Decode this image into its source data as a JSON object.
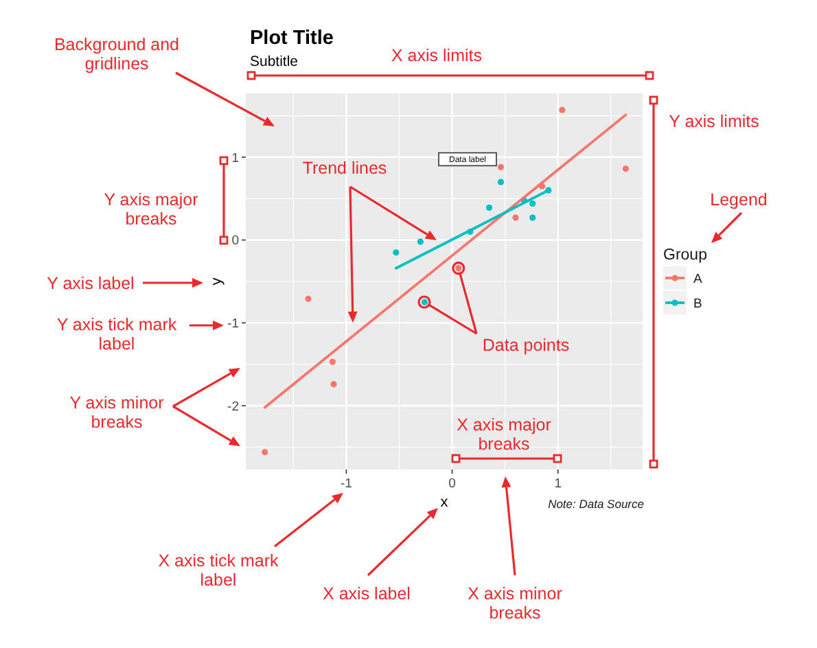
{
  "chart_data": {
    "type": "scatter",
    "title": "Plot Title",
    "subtitle": "Subtitle",
    "xlabel": "x",
    "ylabel": "y",
    "legend_title": "Group",
    "xlim": [
      -1.95,
      1.8
    ],
    "ylim": [
      -2.77,
      1.77
    ],
    "xticks": [
      -1,
      0,
      1
    ],
    "yticks": [
      -2,
      -1,
      0,
      1
    ],
    "grid": true,
    "legend": "right",
    "marker": "circle",
    "series": [
      {
        "name": "A",
        "color": "#f8766d",
        "x": [
          1.04,
          0.46,
          1.64,
          0.85,
          0.6,
          -1.36,
          -1.13,
          -1.12,
          -1.77,
          0.06
        ],
        "values": [
          1.57,
          0.88,
          0.86,
          0.65,
          0.27,
          -0.71,
          -1.47,
          -1.74,
          -2.56,
          -0.34
        ]
      },
      {
        "name": "B",
        "color": "#00bfc4",
        "x": [
          -0.53,
          -0.3,
          0.17,
          0.35,
          0.46,
          0.68,
          0.76,
          0.76,
          0.91,
          -0.26
        ],
        "values": [
          -0.15,
          -0.02,
          0.1,
          0.39,
          0.7,
          0.48,
          0.44,
          0.27,
          0.6,
          -0.75
        ]
      },
      {
        "type": "line",
        "color": "#f8766d",
        "marker": "none",
        "x": [
          -1.77,
          1.64
        ],
        "values": [
          -2.02,
          1.51
        ]
      },
      {
        "type": "line",
        "color": "#00bfc4",
        "marker": "none",
        "x": [
          -0.53,
          0.91
        ],
        "values": [
          -0.34,
          0.6
        ]
      }
    ],
    "annotations": [
      "Background and gridlines",
      "X axis limits",
      "Y axis limits",
      "Y axis major breaks",
      "Trend lines",
      "Legend",
      "Y axis label",
      "Y axis tick mark label",
      {
        "text": "Data points",
        "x": 0.06,
        "y": -0.34
      },
      "Y axis minor breaks",
      "X axis major breaks",
      "X axis tick mark label",
      "X axis label",
      "X axis minor breaks",
      "Note: Data Source",
      "Data label"
    ]
  }
}
